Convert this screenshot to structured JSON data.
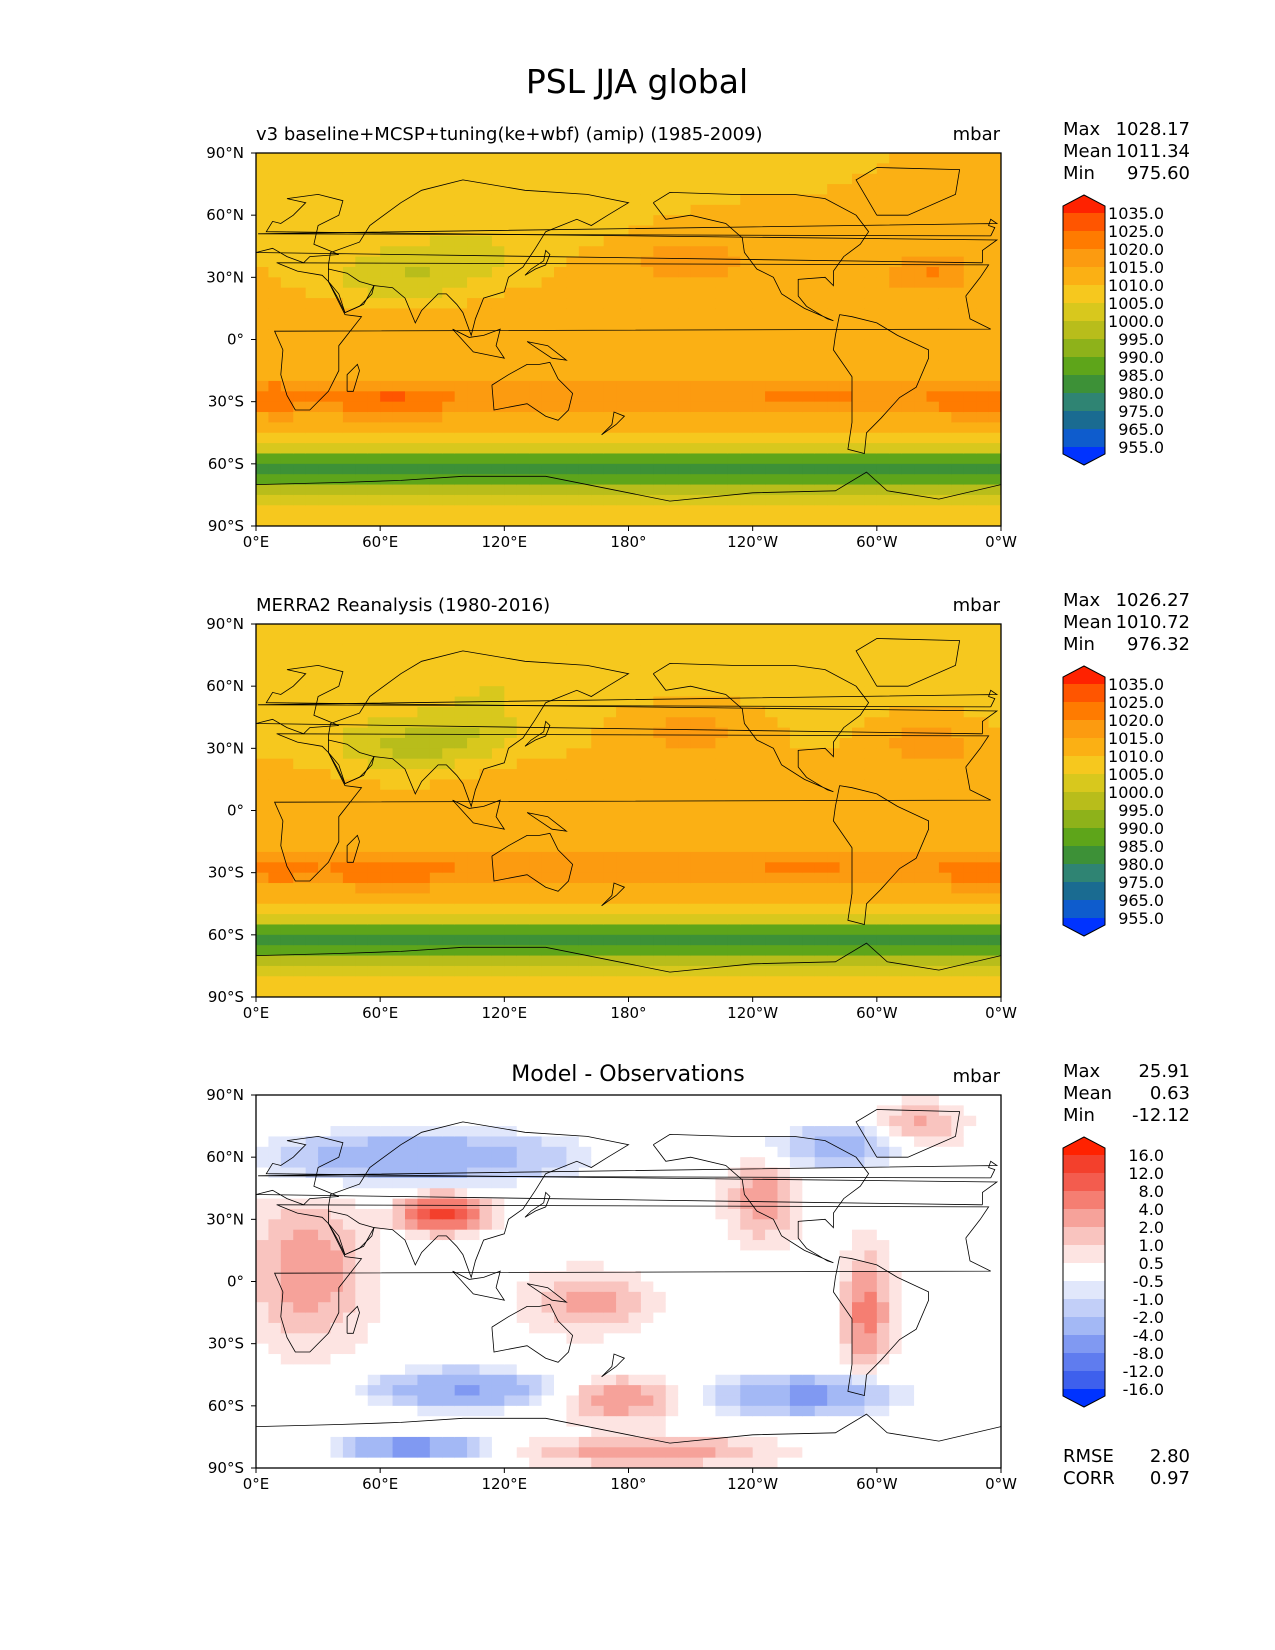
{
  "suptitle": "PSL JJA global",
  "chart_data": [
    {
      "type": "heatmap",
      "panel": "test",
      "title": "v3 baseline+MCSP+tuning(ke+wbf) (amip) (1985-2009)",
      "title_position": "left",
      "units": "mbar",
      "xlabel": "",
      "ylabel": "",
      "xlim": [
        0,
        360
      ],
      "ylim": [
        -90,
        90
      ],
      "x_ticks": [
        "0°E",
        "60°E",
        "120°E",
        "180°",
        "120°W",
        "60°W",
        "0°W"
      ],
      "y_ticks": [
        "90°N",
        "60°N",
        "30°N",
        "0°",
        "30°S",
        "60°S",
        "90°S"
      ],
      "stats": [
        {
          "label": "Max",
          "value": "1028.17"
        },
        {
          "label": "Mean",
          "value": "1011.34"
        },
        {
          "label": "Min",
          "value": "975.60"
        }
      ],
      "colorbar_ticks": [
        "1035.0",
        "1025.0",
        "1020.0",
        "1015.0",
        "1010.0",
        "1005.0",
        "1000.0",
        "995.0",
        "990.0",
        "985.0",
        "980.0",
        "975.0",
        "965.0",
        "955.0"
      ],
      "colorbar_colors": [
        "#ff2200",
        "#ff5500",
        "#ff7b00",
        "#fc9b10",
        "#fbb014",
        "#f6c81e",
        "#d8c81d",
        "#b8bd1b",
        "#8eb21a",
        "#5ea51a",
        "#3d9137",
        "#2f8473",
        "#1a6b91",
        "#0e5ccd",
        "#0033ff"
      ],
      "field": "model_psl"
    },
    {
      "type": "heatmap",
      "panel": "reference",
      "title": "MERRA2 Reanalysis (1980-2016)",
      "title_position": "left",
      "units": "mbar",
      "xlabel": "",
      "ylabel": "",
      "xlim": [
        0,
        360
      ],
      "ylim": [
        -90,
        90
      ],
      "x_ticks": [
        "0°E",
        "60°E",
        "120°E",
        "180°",
        "120°W",
        "60°W",
        "0°W"
      ],
      "y_ticks": [
        "90°N",
        "60°N",
        "30°N",
        "0°",
        "30°S",
        "60°S",
        "90°S"
      ],
      "stats": [
        {
          "label": "Max",
          "value": "1026.27"
        },
        {
          "label": "Mean",
          "value": "1010.72"
        },
        {
          "label": "Min",
          "value": "976.32"
        }
      ],
      "colorbar_ticks": [
        "1035.0",
        "1025.0",
        "1020.0",
        "1015.0",
        "1010.0",
        "1005.0",
        "1000.0",
        "995.0",
        "990.0",
        "985.0",
        "980.0",
        "975.0",
        "965.0",
        "955.0"
      ],
      "colorbar_colors": [
        "#ff2200",
        "#ff5500",
        "#ff7b00",
        "#fc9b10",
        "#fbb014",
        "#f6c81e",
        "#d8c81d",
        "#b8bd1b",
        "#8eb21a",
        "#5ea51a",
        "#3d9137",
        "#2f8473",
        "#1a6b91",
        "#0e5ccd",
        "#0033ff"
      ],
      "field": "obs_psl"
    },
    {
      "type": "heatmap",
      "panel": "difference",
      "title": "Model - Observations",
      "title_position": "center",
      "units": "mbar",
      "xlabel": "",
      "ylabel": "",
      "xlim": [
        0,
        360
      ],
      "ylim": [
        -90,
        90
      ],
      "x_ticks": [
        "0°E",
        "60°E",
        "120°E",
        "180°",
        "120°W",
        "60°W",
        "0°W"
      ],
      "y_ticks": [
        "90°N",
        "60°N",
        "30°N",
        "0°",
        "30°S",
        "60°S",
        "90°S"
      ],
      "stats": [
        {
          "label": "Max",
          "value": "25.91"
        },
        {
          "label": "Mean",
          "value": "0.63"
        },
        {
          "label": "Min",
          "value": "-12.12"
        }
      ],
      "extra_stats": [
        {
          "label": "RMSE",
          "value": "2.80"
        },
        {
          "label": "CORR",
          "value": "0.97"
        }
      ],
      "colorbar_ticks": [
        "16.0",
        "12.0",
        "8.0",
        "4.0",
        "2.0",
        "1.0",
        "0.5",
        "-0.5",
        "-1.0",
        "-2.0",
        "-4.0",
        "-8.0",
        "-12.0",
        "-16.0"
      ],
      "colorbar_colors": [
        "#ff2200",
        "#f3402c",
        "#f35c4e",
        "#f57e72",
        "#f6a29a",
        "#f9c4bf",
        "#fde4e2",
        "#ffffff",
        "#e1e7fb",
        "#c2cff8",
        "#a3b8f5",
        "#8099f2",
        "#5f7cef",
        "#3e60ed",
        "#0033ff"
      ],
      "field": "diff_psl"
    }
  ]
}
